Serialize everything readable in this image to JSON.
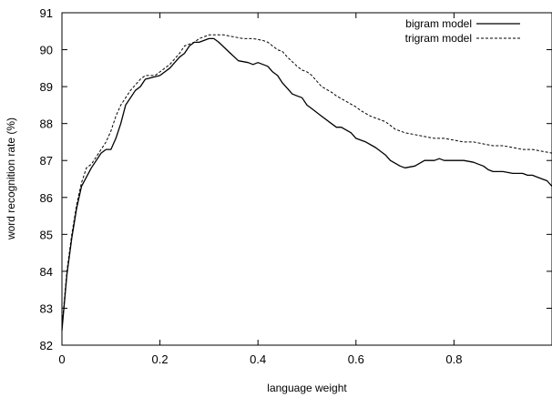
{
  "chart_data": {
    "type": "line",
    "title": "",
    "xlabel": "language weight",
    "ylabel": "word recognition rate (%)",
    "xlim": [
      0,
      1
    ],
    "ylim": [
      82,
      91
    ],
    "x_ticks": [
      0,
      0.2,
      0.4,
      0.6,
      0.8
    ],
    "x_tick_labels": [
      "0",
      "0.2",
      "0.4",
      "0.6",
      "0.8"
    ],
    "y_ticks": [
      82,
      83,
      84,
      85,
      86,
      87,
      88,
      89,
      90,
      91
    ],
    "y_tick_labels": [
      "82",
      "83",
      "84",
      "85",
      "86",
      "87",
      "88",
      "89",
      "90",
      "91"
    ],
    "grid": false,
    "legend_position": "top-right",
    "series": [
      {
        "name": "bigram model",
        "style": "solid",
        "color": "#000000",
        "x": [
          0,
          0.01,
          0.02,
          0.03,
          0.04,
          0.06,
          0.08,
          0.09,
          0.1,
          0.11,
          0.12,
          0.13,
          0.15,
          0.16,
          0.17,
          0.2,
          0.22,
          0.24,
          0.25,
          0.26,
          0.27,
          0.28,
          0.29,
          0.3,
          0.31,
          0.32,
          0.34,
          0.36,
          0.38,
          0.39,
          0.4,
          0.42,
          0.43,
          0.44,
          0.45,
          0.46,
          0.47,
          0.48,
          0.49,
          0.5,
          0.51,
          0.53,
          0.55,
          0.56,
          0.57,
          0.59,
          0.6,
          0.62,
          0.64,
          0.66,
          0.67,
          0.69,
          0.7,
          0.72,
          0.74,
          0.75,
          0.76,
          0.77,
          0.78,
          0.8,
          0.82,
          0.84,
          0.85,
          0.86,
          0.87,
          0.88,
          0.9,
          0.92,
          0.94,
          0.95,
          0.96,
          0.97,
          0.98,
          0.99,
          1.0
        ],
        "values": [
          82.4,
          83.9,
          84.9,
          85.7,
          86.3,
          86.8,
          87.2,
          87.3,
          87.3,
          87.6,
          88.0,
          88.5,
          88.9,
          89.0,
          89.2,
          89.3,
          89.5,
          89.8,
          89.9,
          90.1,
          90.2,
          90.2,
          90.25,
          90.3,
          90.3,
          90.2,
          89.95,
          89.7,
          89.65,
          89.6,
          89.65,
          89.55,
          89.4,
          89.3,
          89.1,
          88.95,
          88.8,
          88.75,
          88.7,
          88.5,
          88.4,
          88.2,
          88.0,
          87.9,
          87.9,
          87.75,
          87.6,
          87.5,
          87.35,
          87.15,
          87.0,
          86.85,
          86.8,
          86.85,
          87.0,
          87.0,
          87.0,
          87.05,
          87.0,
          87.0,
          87.0,
          86.95,
          86.9,
          86.85,
          86.75,
          86.7,
          86.7,
          86.65,
          86.65,
          86.6,
          86.6,
          86.55,
          86.5,
          86.45,
          86.3
        ]
      },
      {
        "name": "trigram model",
        "style": "dashed",
        "color": "#000000",
        "x": [
          0,
          0.01,
          0.02,
          0.03,
          0.04,
          0.05,
          0.06,
          0.08,
          0.09,
          0.1,
          0.11,
          0.12,
          0.14,
          0.16,
          0.17,
          0.19,
          0.2,
          0.22,
          0.24,
          0.25,
          0.27,
          0.28,
          0.29,
          0.3,
          0.31,
          0.33,
          0.35,
          0.37,
          0.39,
          0.41,
          0.42,
          0.43,
          0.44,
          0.45,
          0.46,
          0.48,
          0.49,
          0.5,
          0.51,
          0.53,
          0.55,
          0.56,
          0.58,
          0.6,
          0.61,
          0.63,
          0.65,
          0.66,
          0.67,
          0.68,
          0.7,
          0.72,
          0.74,
          0.76,
          0.78,
          0.8,
          0.82,
          0.84,
          0.86,
          0.88,
          0.9,
          0.92,
          0.94,
          0.96,
          0.98,
          1.0
        ],
        "values": [
          82.5,
          84.0,
          85.0,
          85.8,
          86.4,
          86.8,
          86.9,
          87.3,
          87.5,
          87.8,
          88.2,
          88.5,
          88.9,
          89.2,
          89.3,
          89.3,
          89.4,
          89.6,
          89.9,
          90.1,
          90.2,
          90.3,
          90.35,
          90.4,
          90.4,
          90.4,
          90.35,
          90.3,
          90.3,
          90.25,
          90.2,
          90.1,
          90.0,
          89.95,
          89.8,
          89.55,
          89.45,
          89.4,
          89.3,
          89.0,
          88.85,
          88.75,
          88.6,
          88.45,
          88.35,
          88.2,
          88.1,
          88.05,
          87.95,
          87.85,
          87.75,
          87.7,
          87.65,
          87.6,
          87.6,
          87.55,
          87.5,
          87.5,
          87.45,
          87.4,
          87.4,
          87.35,
          87.3,
          87.3,
          87.25,
          87.2
        ]
      }
    ]
  }
}
